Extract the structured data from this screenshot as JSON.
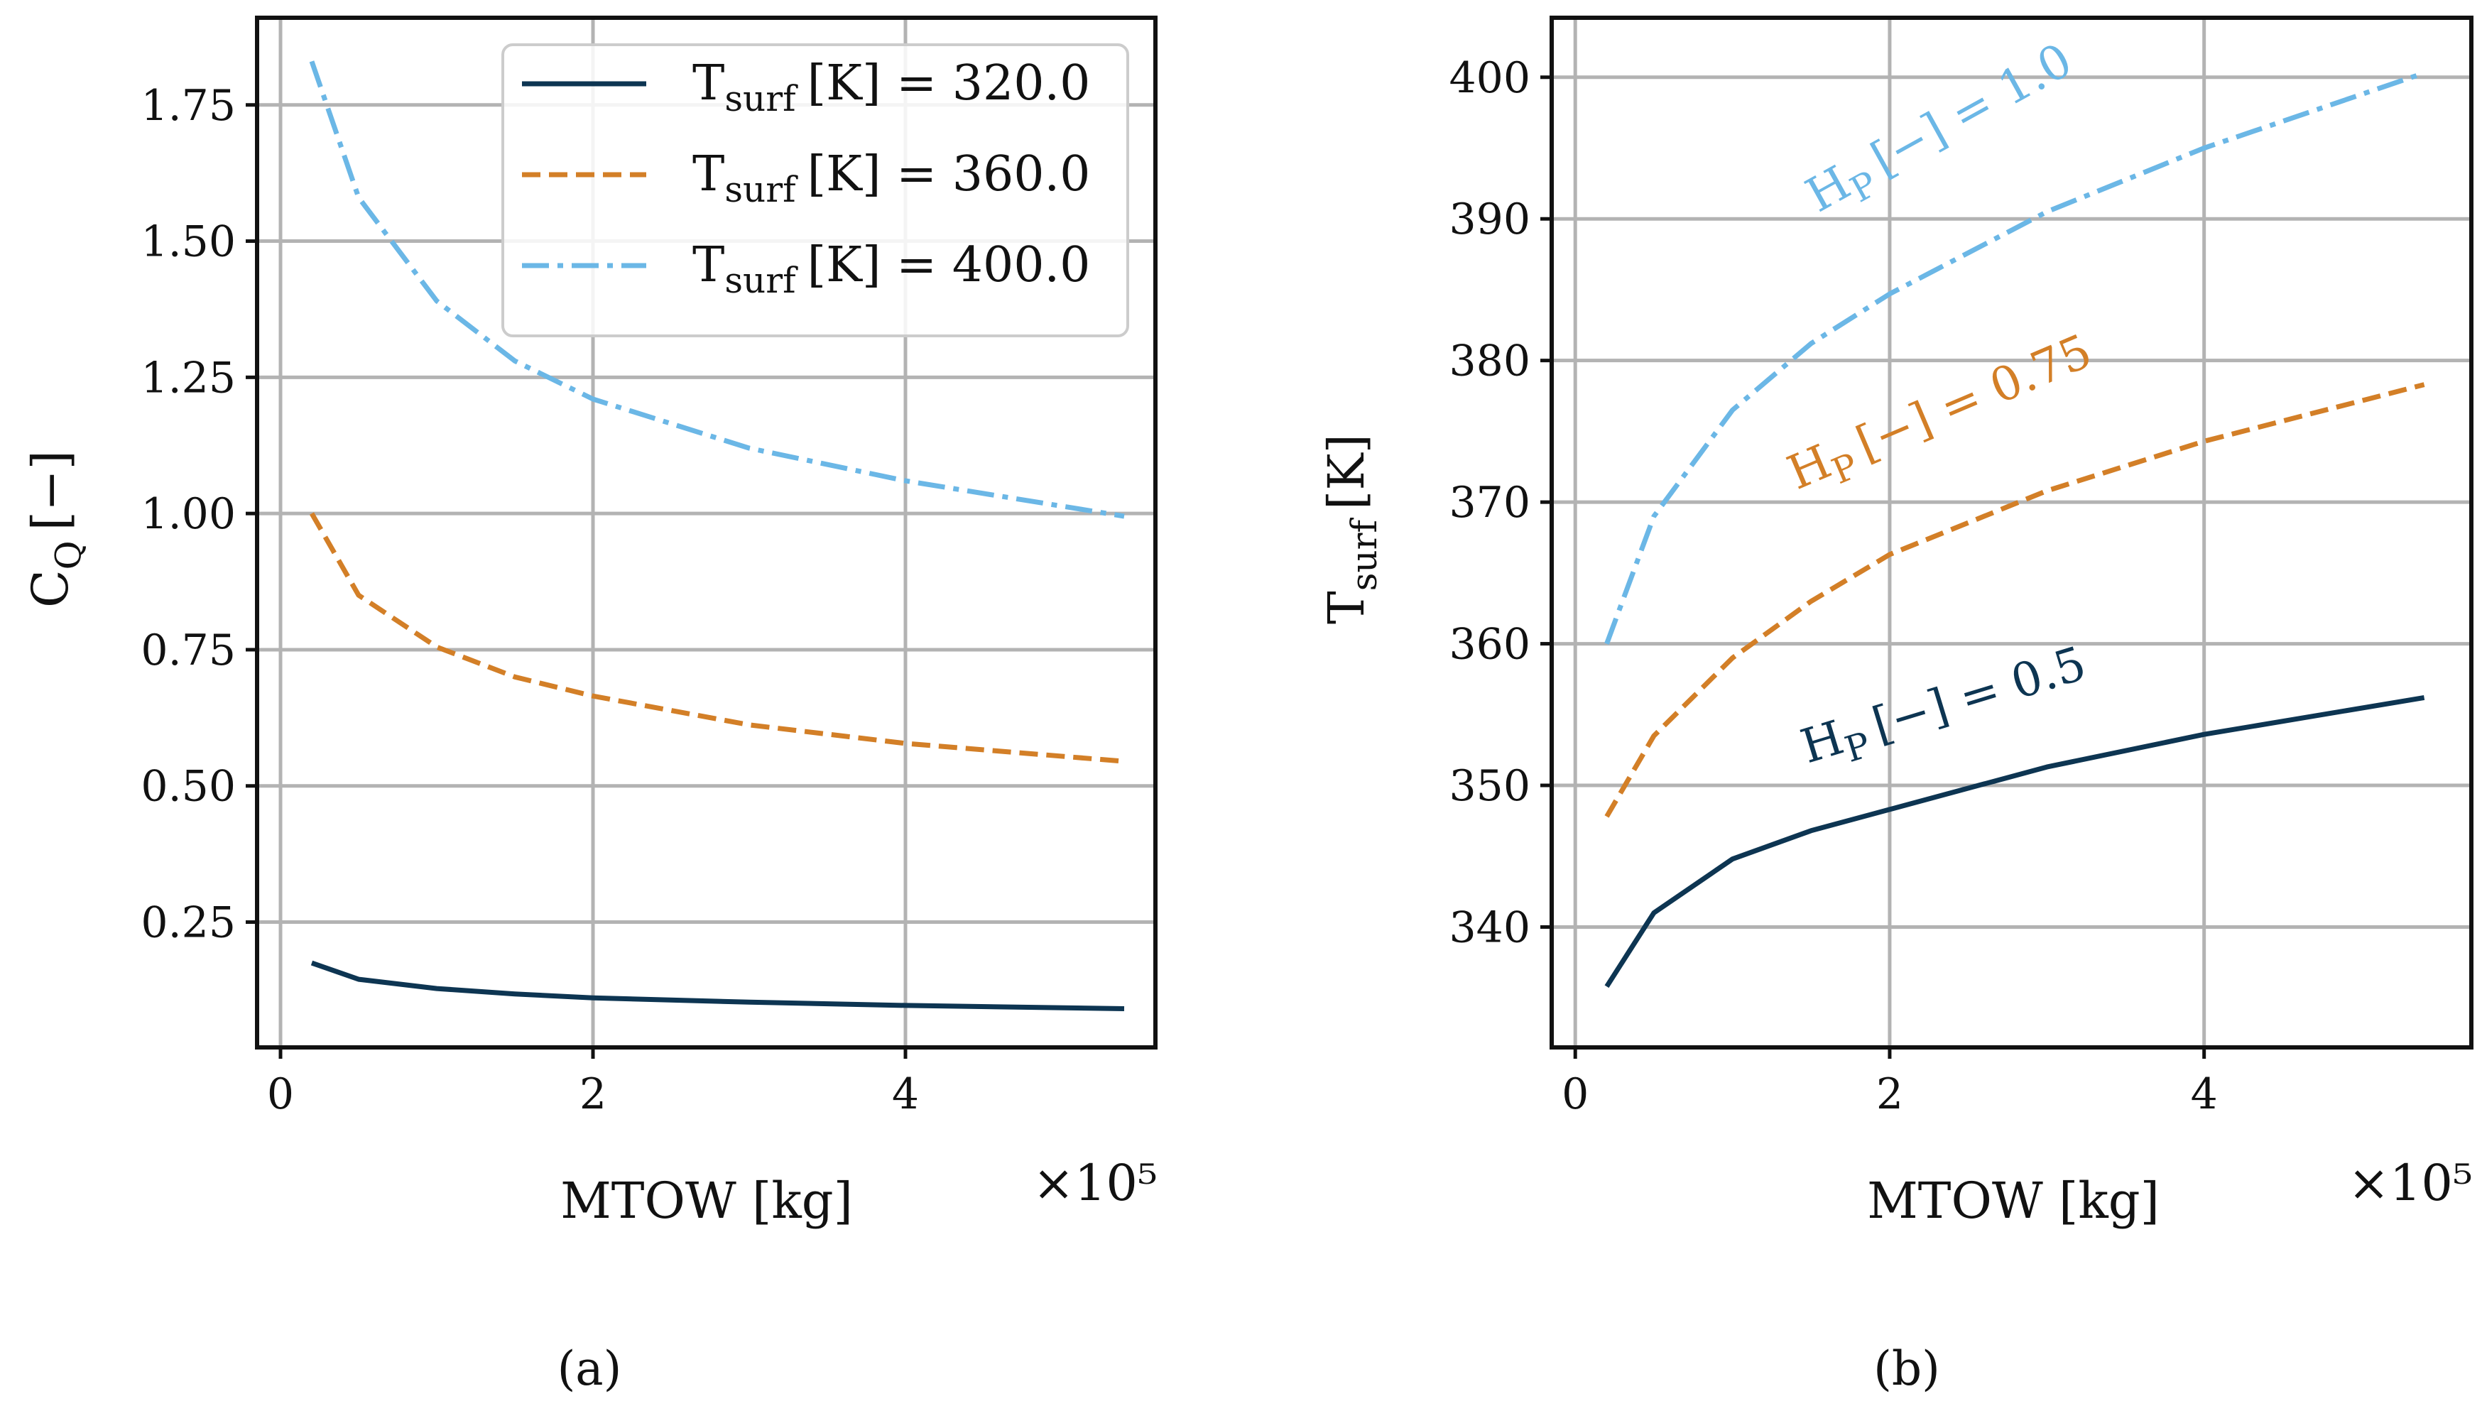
{
  "chart_data": [
    {
      "type": "line",
      "panel_label": "(a)",
      "x_multiplier_label": "×10⁵",
      "xlabel": "MTOW [kg]",
      "ylabel": "C_Q [−]",
      "xlim": [
        -0.15,
        5.6
      ],
      "ylim": [
        0.02,
        1.91
      ],
      "xticks": [
        0,
        2,
        4
      ],
      "xtick_labels": [
        "0",
        "2",
        "4"
      ],
      "yticks": [
        0.25,
        0.5,
        0.75,
        1.0,
        1.25,
        1.5,
        1.75
      ],
      "ytick_labels": [
        "0.25",
        "0.50",
        "0.75",
        "1.00",
        "1.25",
        "1.50",
        "1.75"
      ],
      "grid": true,
      "legend_position": "top-right",
      "series": [
        {
          "name": "T_surf [K] = 320.0",
          "legend_text": "[K] = 320.0",
          "color": "#0d3552",
          "style": "solid",
          "x": [
            0.2,
            0.5,
            1.0,
            1.5,
            2.0,
            3.0,
            4.0,
            5.4
          ],
          "y": [
            0.175,
            0.145,
            0.128,
            0.118,
            0.111,
            0.103,
            0.097,
            0.091
          ]
        },
        {
          "name": "T_surf [K] = 360.0",
          "legend_text": "[K] = 360.0",
          "color": "#d37f27",
          "style": "dashed",
          "x": [
            0.2,
            0.5,
            1.0,
            1.5,
            2.0,
            3.0,
            4.0,
            5.4
          ],
          "y": [
            1.0,
            0.85,
            0.755,
            0.7,
            0.665,
            0.612,
            0.578,
            0.545
          ]
        },
        {
          "name": "T_surf [K] = 400.0",
          "legend_text": "[K] = 400.0",
          "color": "#6bb7e6",
          "style": "dashdot",
          "x": [
            0.2,
            0.5,
            1.0,
            1.5,
            2.0,
            3.0,
            4.0,
            5.4
          ],
          "y": [
            1.83,
            1.58,
            1.39,
            1.28,
            1.21,
            1.12,
            1.06,
            0.995
          ]
        }
      ]
    },
    {
      "type": "line",
      "panel_label": "(b)",
      "x_multiplier_label": "×10⁵",
      "xlabel": "MTOW [kg]",
      "ylabel": "T_surf [K]",
      "xlim": [
        -0.15,
        5.7
      ],
      "ylim": [
        331.5,
        404.2
      ],
      "xticks": [
        0,
        2,
        4
      ],
      "xtick_labels": [
        "0",
        "2",
        "4"
      ],
      "yticks": [
        340,
        350,
        360,
        370,
        380,
        390,
        400
      ],
      "ytick_labels": [
        "340",
        "350",
        "360",
        "370",
        "380",
        "390",
        "400"
      ],
      "grid": true,
      "series": [
        {
          "name": "H_P [−] = 0.5",
          "label_text": "[−] = 0.5",
          "color": "#0d3552",
          "style": "solid",
          "x": [
            0.2,
            0.5,
            1.0,
            1.5,
            2.0,
            3.0,
            4.0,
            5.4
          ],
          "y": [
            335.8,
            341.0,
            344.8,
            346.8,
            348.3,
            351.3,
            353.6,
            356.2
          ]
        },
        {
          "name": "H_P [−] = 0.75",
          "label_text": "[−] = 0.75",
          "color": "#d37f27",
          "style": "dashed",
          "x": [
            0.2,
            0.5,
            1.0,
            1.5,
            2.0,
            3.0,
            4.0,
            5.4
          ],
          "y": [
            347.8,
            353.5,
            359.0,
            363.0,
            366.3,
            370.8,
            374.3,
            378.3
          ]
        },
        {
          "name": "H_P [−] = 1.0",
          "label_text": "[−] = 1.0",
          "color": "#6bb7e6",
          "style": "dashdot",
          "x": [
            0.2,
            0.5,
            1.0,
            1.5,
            2.0,
            3.0,
            4.0,
            5.4
          ],
          "y": [
            360.0,
            369.0,
            376.5,
            381.2,
            384.7,
            390.5,
            395.0,
            400.3
          ]
        }
      ]
    }
  ],
  "labels": {
    "cq_main": "C",
    "cq_sub": "Q",
    "cq_unit": "[−]",
    "tsurf_main": "T",
    "tsurf_sub": "surf",
    "tsurf_unit": "[K]",
    "hp_main": "H",
    "hp_sub": "P"
  }
}
